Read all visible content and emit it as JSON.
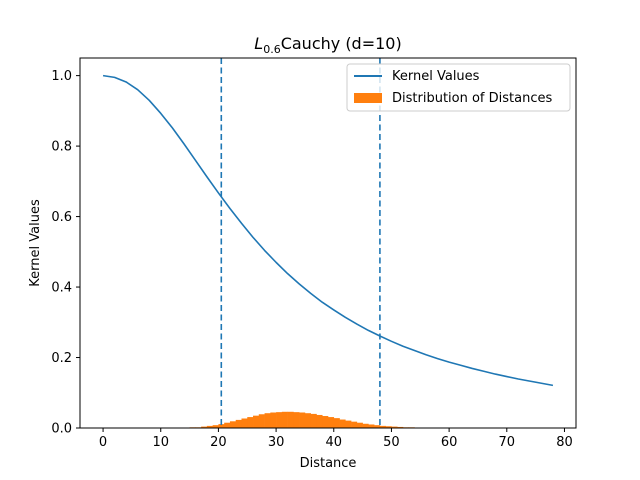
{
  "chart_data": {
    "type": "line",
    "title": {
      "main_italic": "L",
      "subscript": "0.6",
      "rest": "Cauchy (d=10)"
    },
    "xlabel": "Distance",
    "ylabel": "Kernel Values",
    "xlim": [
      -4,
      82
    ],
    "ylim": [
      0,
      1.05
    ],
    "xticks": [
      0,
      10,
      20,
      30,
      40,
      50,
      60,
      70,
      80
    ],
    "yticks": [
      0.0,
      0.2,
      0.4,
      0.6,
      0.8,
      1.0
    ],
    "xtick_labels": [
      "0",
      "10",
      "20",
      "30",
      "40",
      "50",
      "60",
      "70",
      "80"
    ],
    "ytick_labels": [
      "0.0",
      "0.2",
      "0.4",
      "0.6",
      "0.8",
      "1.0"
    ],
    "legend_position": "top-right",
    "series": [
      {
        "name": "Kernel Values",
        "kind": "line",
        "color": "#1f77b4",
        "x": [
          0,
          2,
          4,
          6,
          8,
          10,
          12,
          14,
          16,
          18,
          20,
          22,
          24,
          26,
          28,
          30,
          32,
          34,
          36,
          38,
          40,
          42,
          44,
          46,
          48,
          50,
          52,
          54,
          56,
          58,
          60,
          62,
          64,
          66,
          68,
          70,
          72,
          74,
          76,
          78
        ],
        "y": [
          1.0,
          0.995,
          0.982,
          0.96,
          0.93,
          0.893,
          0.852,
          0.807,
          0.76,
          0.713,
          0.667,
          0.623,
          0.581,
          0.541,
          0.504,
          0.47,
          0.438,
          0.409,
          0.382,
          0.357,
          0.335,
          0.314,
          0.295,
          0.277,
          0.261,
          0.246,
          0.232,
          0.22,
          0.208,
          0.197,
          0.187,
          0.178,
          0.169,
          0.161,
          0.153,
          0.146,
          0.139,
          0.133,
          0.127,
          0.121
        ]
      },
      {
        "name": "Distribution of Distances",
        "kind": "histogram",
        "color": "#ff7f0e",
        "bin_edges": [
          13,
          14,
          15,
          16,
          17,
          18,
          19,
          20,
          21,
          22,
          23,
          24,
          25,
          26,
          27,
          28,
          29,
          30,
          31,
          32,
          33,
          34,
          35,
          36,
          37,
          38,
          39,
          40,
          41,
          42,
          43,
          44,
          45,
          46,
          47,
          48,
          49,
          50,
          51,
          52,
          53,
          54,
          55
        ],
        "values": [
          0.001,
          0.001,
          0.002,
          0.002,
          0.004,
          0.006,
          0.008,
          0.011,
          0.015,
          0.019,
          0.023,
          0.027,
          0.031,
          0.035,
          0.039,
          0.042,
          0.044,
          0.045,
          0.046,
          0.046,
          0.045,
          0.044,
          0.042,
          0.04,
          0.037,
          0.034,
          0.031,
          0.028,
          0.024,
          0.021,
          0.018,
          0.015,
          0.012,
          0.01,
          0.008,
          0.006,
          0.005,
          0.004,
          0.003,
          0.002,
          0.002,
          0.001
        ]
      }
    ],
    "vlines": [
      {
        "x": 20.5,
        "color": "#1f77b4",
        "style": "dashed"
      },
      {
        "x": 48.0,
        "color": "#1f77b4",
        "style": "dashed"
      }
    ]
  }
}
